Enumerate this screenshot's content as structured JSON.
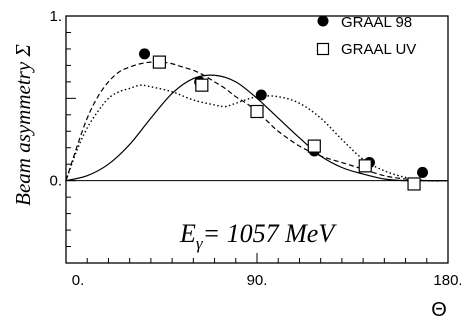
{
  "chart_data": {
    "type": "scatter",
    "xlabel": "Θ",
    "ylabel": "Beam asymmetry Σ",
    "xlim": [
      0,
      180
    ],
    "ylim": [
      -0.5,
      1.0
    ],
    "x_ticks": [
      {
        "value": 0,
        "label": "0."
      },
      {
        "value": 90,
        "label": "90."
      },
      {
        "value": 180,
        "label": "180."
      }
    ],
    "y_ticks": [
      {
        "value": 0,
        "label": "0."
      },
      {
        "value": 1,
        "label": "1."
      }
    ],
    "annotation": {
      "prefix": "E",
      "subscript": "γ",
      "suffix": "= 1057 MeV"
    },
    "legend_position": "top-right",
    "grid": false,
    "zero_line": true,
    "series": [
      {
        "name": "GRAAL 98",
        "marker": "filled-circle",
        "points": [
          {
            "x": 37,
            "y": 0.77
          },
          {
            "x": 63,
            "y": 0.6
          },
          {
            "x": 92,
            "y": 0.52
          },
          {
            "x": 117,
            "y": 0.18
          },
          {
            "x": 143,
            "y": 0.11
          },
          {
            "x": 168,
            "y": 0.05
          }
        ]
      },
      {
        "name": "GRAAL UV",
        "marker": "open-square",
        "points": [
          {
            "x": 44,
            "y": 0.72
          },
          {
            "x": 64,
            "y": 0.58
          },
          {
            "x": 90,
            "y": 0.42
          },
          {
            "x": 117,
            "y": 0.21
          },
          {
            "x": 141,
            "y": 0.09
          },
          {
            "x": 164,
            "y": -0.02
          }
        ]
      }
    ],
    "curves": [
      {
        "style": "solid",
        "x": [
          0,
          10,
          20,
          30,
          40,
          50,
          60,
          70,
          80,
          90,
          100,
          110,
          120,
          130,
          140,
          150,
          160,
          170,
          180
        ],
        "y": [
          0,
          0.03,
          0.1,
          0.22,
          0.38,
          0.53,
          0.62,
          0.64,
          0.6,
          0.5,
          0.38,
          0.26,
          0.15,
          0.08,
          0.04,
          0.01,
          0,
          0,
          0
        ]
      },
      {
        "style": "dashed",
        "x": [
          0,
          5,
          10,
          15,
          20,
          25,
          30,
          35,
          40,
          45,
          50,
          55,
          60,
          65,
          70,
          75,
          80,
          85,
          90,
          95,
          100,
          110,
          120,
          130,
          140,
          150,
          160,
          170,
          180
        ],
        "y": [
          0,
          0.2,
          0.38,
          0.51,
          0.6,
          0.66,
          0.69,
          0.71,
          0.72,
          0.72,
          0.71,
          0.69,
          0.67,
          0.64,
          0.6,
          0.56,
          0.51,
          0.47,
          0.42,
          0.36,
          0.3,
          0.21,
          0.15,
          0.11,
          0.07,
          0.03,
          0.01,
          0,
          0
        ]
      },
      {
        "style": "dotted",
        "x": [
          0,
          5,
          10,
          15,
          20,
          25,
          30,
          35,
          40,
          50,
          60,
          70,
          75,
          80,
          90,
          100,
          110,
          120,
          130,
          140,
          150,
          160,
          170,
          180
        ],
        "y": [
          0,
          0.18,
          0.32,
          0.42,
          0.5,
          0.54,
          0.56,
          0.58,
          0.57,
          0.54,
          0.49,
          0.46,
          0.45,
          0.47,
          0.51,
          0.51,
          0.47,
          0.38,
          0.25,
          0.13,
          0.06,
          0.02,
          0,
          0
        ]
      }
    ]
  }
}
